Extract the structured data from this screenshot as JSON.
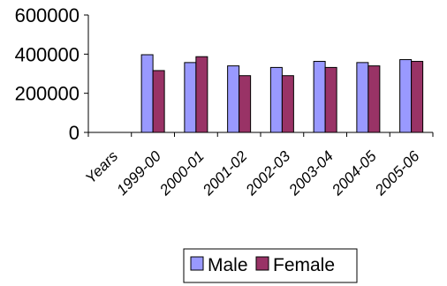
{
  "chart_data": {
    "type": "bar",
    "categories": [
      "Years",
      "1999-00",
      "2000-01",
      "2001-02",
      "2002-03",
      "2003-04",
      "2004-05",
      "2005-06"
    ],
    "series": [
      {
        "name": "Male",
        "color": "#9999ff",
        "values": [
          null,
          397000,
          357000,
          340000,
          332000,
          363000,
          357000,
          372000
        ]
      },
      {
        "name": "Female",
        "color": "#993366",
        "values": [
          null,
          316000,
          387000,
          290000,
          290000,
          332000,
          340000,
          363000
        ]
      }
    ],
    "yticks": [
      "600000",
      "400000",
      "200000",
      "0"
    ],
    "ylim": [
      0,
      600000
    ],
    "grid": false,
    "legend_position": "bottom"
  }
}
